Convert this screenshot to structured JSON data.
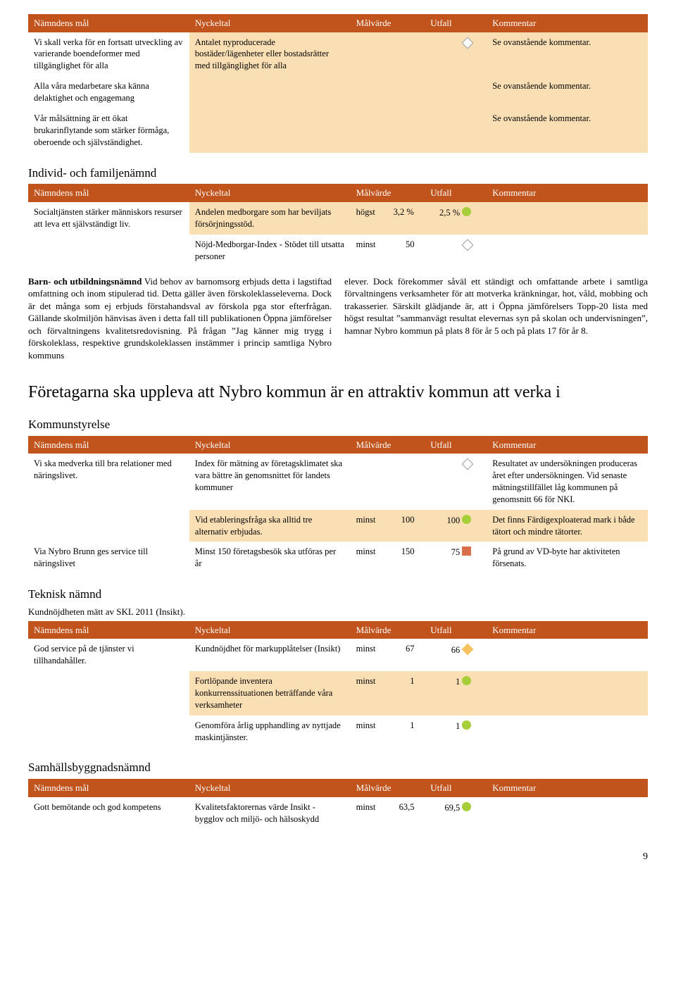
{
  "colors": {
    "header_bg": "#c1531c",
    "header_text": "#ffffff",
    "shade_bg": "#fbdfb4",
    "body_text": "#000000",
    "green": "#a6ce39",
    "red": "#d96e4a",
    "yellow": "#fac163",
    "diamond_border": "#9c9c9c"
  },
  "headers": {
    "goal": "Nämndens mål",
    "metric": "Nyckeltal",
    "target": "Målvärde",
    "outcome": "Utfall",
    "comment": "Kommentar"
  },
  "table1": {
    "rows": [
      {
        "goal": "Vi skall verka för en fortsatt utveckling av varierande boendeformer med tillgänglighet för alla",
        "metric": "Antalet nyproducerade bostäder/lägenheter eller bostadsrätter med tillgänglighet för alla",
        "target": "",
        "outcome": "",
        "indicator": "diamond",
        "comment": "Se ovanstående kommentar.",
        "shade_metric": true
      },
      {
        "goal": "Alla våra medarbetare ska känna delaktighet och engagemang",
        "metric": "",
        "target": "",
        "outcome": "",
        "indicator": "",
        "comment": "Se ovanstående kommentar.",
        "shade_metric": true
      },
      {
        "goal": "Vår målsättning är ett ökat brukarinflytande som stärker förmåga, oberoende och självständighet.",
        "metric": "",
        "target": "",
        "outcome": "",
        "indicator": "",
        "comment": "Se ovanstående kommentar.",
        "shade_metric": true
      }
    ]
  },
  "sec2": {
    "title": "Individ- och familjenämnd"
  },
  "table2": {
    "rows": [
      {
        "goal": "Socialtjänsten stärker människors resurser att leva ett självständigt liv.",
        "metric": "Andelen medborgare som har beviljats försörjningsstöd.",
        "target_prefix": "högst",
        "target_val": "3,2 %",
        "outcome": "2,5 %",
        "indicator": "circle-green",
        "comment": "",
        "shade_metric": true
      },
      {
        "goal": "",
        "metric": "Nöjd-Medborgar-Index - Stödet till utsatta personer",
        "target_prefix": "minst",
        "target_val": "50",
        "outcome": "",
        "indicator": "diamond",
        "comment": "",
        "shade_metric": false
      }
    ]
  },
  "prose": {
    "runin": "Barn- och utbildningsnämnd",
    "left": "Vid behov av barnomsorg erbjuds detta i lagstiftad omfattning och inom stipulerad tid. Detta gäller även förskoleklasseleverna. Dock är det många som ej erbjuds förstahandsval av förskola pga stor efterfrågan. Gällande skolmiljön hänvisas även i detta fall till publikationen Öppna jämförelser och förvaltningens kvalitetsredovisning. På frågan ”Jag känner mig trygg i förskoleklass, respektive grundskoleklassen instämmer i princip samtliga Nybro kommuns",
    "right": "elever. Dock förekommer såväl ett ständigt och omfattande arbete i samtliga förvaltningens verksamheter för att motverka kränkningar, hot, våld, mobbing och trakasserier. Särskilt glädjande är, att i Öppna jämförelsers Topp-20 lista med högst resultat ”sammanvägt resultat elevernas syn på skolan och undervisningen”, hamnar Nybro kommun på plats 8 för år 5 och på plats 17 för år 8."
  },
  "sec3": {
    "bigtitle": "Företagarna ska uppleva att Nybro kommun är en attraktiv kommun att verka i",
    "subtitle": "Kommunstyrelse"
  },
  "table3": {
    "rows": [
      {
        "goal": "Vi ska medverka till bra relationer med näringslivet.",
        "metric": "Index för mätning av företagsklimatet ska vara bättre än genomsnittet för landets kommuner",
        "target_prefix": "",
        "target_val": "",
        "outcome": "",
        "indicator": "diamond",
        "comment": "Resultatet av undersökningen produceras året efter undersökningen. Vid senaste mätningstillfället låg kommunen på genomsnitt 66 för NKI.",
        "shade_metric": false
      },
      {
        "goal": "",
        "metric": "Vid etableringsfråga ska alltid tre alternativ erbjudas.",
        "target_prefix": "minst",
        "target_val": "100",
        "outcome": "100",
        "indicator": "circle-green",
        "comment": "Det finns Färdigexploaterad mark i både tätort och mindre tätorter.",
        "shade_metric": true
      },
      {
        "goal": "Via Nybro Brunn ges service till näringslivet",
        "metric": "Minst 150 företagsbesök ska utföras per år",
        "target_prefix": "minst",
        "target_val": "150",
        "outcome": "75",
        "indicator": "square-red",
        "comment": "På grund av VD-byte har aktiviteten försenats.",
        "shade_metric": false
      }
    ]
  },
  "sec4": {
    "title": "Teknisk nämnd",
    "subtitle": "Kundnöjdheten mätt av SKL 2011 (Insikt)."
  },
  "table4": {
    "rows": [
      {
        "goal": "God service på de tjänster vi tillhandahåller.",
        "metric": "Kundnöjdhet för markupplåtelser (Insikt)",
        "target_prefix": "minst",
        "target_val": "67",
        "outcome": "66",
        "indicator": "diamond-yellow",
        "comment": "",
        "shade_metric": false
      },
      {
        "goal": "",
        "metric": "Fortlöpande inventera konkurrenssituationen beträffande våra verksamheter",
        "target_prefix": "minst",
        "target_val": "1",
        "outcome": "1",
        "indicator": "circle-green",
        "comment": "",
        "shade_metric": true
      },
      {
        "goal": "",
        "metric": "Genomföra årlig upphandling av nyttjade maskintjänster.",
        "target_prefix": "minst",
        "target_val": "1",
        "outcome": "1",
        "indicator": "circle-green",
        "comment": "",
        "shade_metric": false
      }
    ]
  },
  "sec5": {
    "title": "Samhällsbyggnadsnämnd"
  },
  "table5": {
    "rows": [
      {
        "goal": "Gott bemötande och god kompetens",
        "metric": "Kvalitetsfaktorernas värde Insikt - bygglov och miljö- och hälsoskydd",
        "target_prefix": "minst",
        "target_val": "63,5",
        "outcome": "69,5",
        "indicator": "circle-green",
        "comment": "",
        "shade_metric": false
      }
    ]
  },
  "page_num": "9"
}
